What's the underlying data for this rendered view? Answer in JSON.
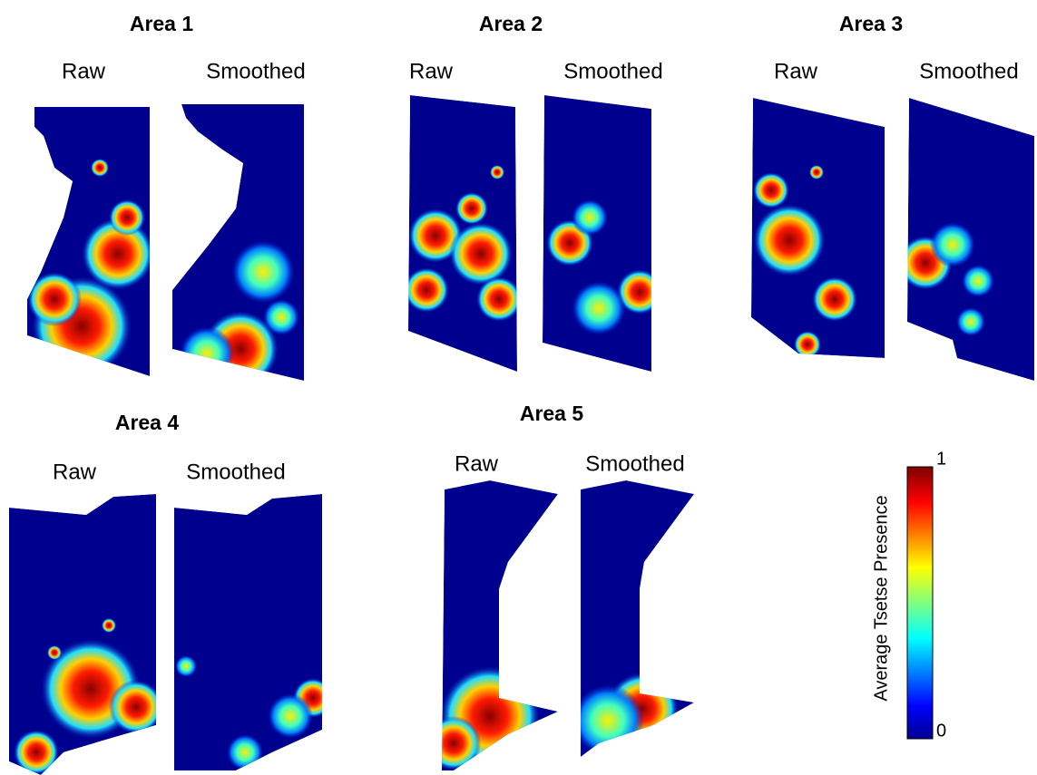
{
  "areas": [
    {
      "title": "Area 1",
      "panels": [
        "Raw",
        "Smoothed"
      ]
    },
    {
      "title": "Area 2",
      "panels": [
        "Raw",
        "Smoothed"
      ]
    },
    {
      "title": "Area 3",
      "panels": [
        "Raw",
        "Smoothed"
      ]
    },
    {
      "title": "Area 4",
      "panels": [
        "Raw",
        "Smoothed"
      ]
    },
    {
      "title": "Area 5",
      "panels": [
        "Raw",
        "Smoothed"
      ]
    }
  ],
  "colorbar": {
    "label": "Average Tsetse Presence",
    "ticks": [
      0,
      1
    ]
  }
}
